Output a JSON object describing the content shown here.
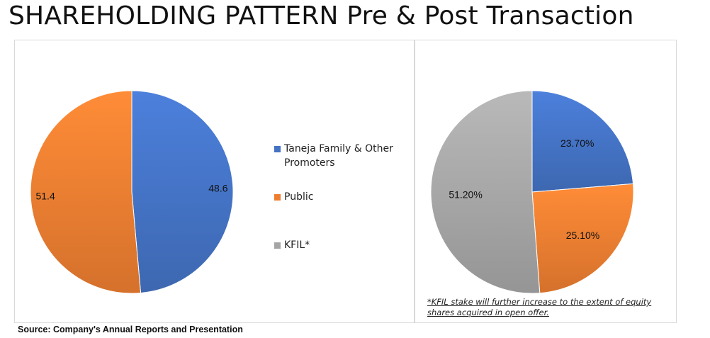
{
  "title": "SHAREHOLDING PATTERN Pre & Post Transaction",
  "legend": [
    {
      "label": "Taneja Family & Other Promoters",
      "color": "#4472c4"
    },
    {
      "label": "Public",
      "color": "#ed7d31"
    },
    {
      "label": "KFIL*",
      "color": "#a5a5a5"
    }
  ],
  "footnote": "*KFIL stake will further increase to the extent of equity shares acquired in open offer.",
  "source": "Source: Company's Annual Reports and Presentation",
  "chart_data": [
    {
      "type": "pie",
      "title": "",
      "categories": [
        "Taneja Family & Other Promoters",
        "Public"
      ],
      "values": [
        48.6,
        51.4
      ],
      "labels": [
        "48.6",
        "51.4"
      ],
      "colors": [
        "#4472c4",
        "#ed7d31"
      ]
    },
    {
      "type": "pie",
      "title": "",
      "categories": [
        "Taneja Family & Other Promoters",
        "Public",
        "KFIL*"
      ],
      "values": [
        23.7,
        25.1,
        51.2
      ],
      "labels": [
        "23.70%",
        "25.10%",
        "51.20%"
      ],
      "colors": [
        "#4472c4",
        "#ed7d31",
        "#a5a5a5"
      ]
    }
  ]
}
